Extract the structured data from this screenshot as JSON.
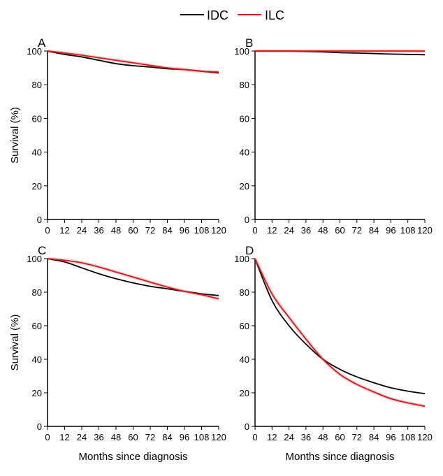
{
  "legend": {
    "items": [
      {
        "name": "IDC",
        "color": "#000000"
      },
      {
        "name": "ILC",
        "color": "#d01c1c"
      }
    ],
    "placement": "top-center"
  },
  "chart_data": [
    {
      "type": "line",
      "panel_label": "A",
      "ylabel": "Survival (%)",
      "xlabel": "",
      "xlim": [
        0,
        120
      ],
      "ylim": [
        0,
        100
      ],
      "xticks": [
        0,
        12,
        24,
        36,
        48,
        60,
        72,
        84,
        96,
        108,
        120
      ],
      "yticks": [
        0,
        20,
        40,
        60,
        80,
        100
      ],
      "x": [
        0,
        12,
        24,
        36,
        48,
        60,
        72,
        84,
        96,
        108,
        120
      ],
      "series": [
        {
          "name": "IDC",
          "values": [
            100,
            98,
            96.5,
            94.5,
            92.5,
            91.3,
            90.5,
            89.5,
            89,
            88,
            87
          ]
        },
        {
          "name": "ILC",
          "values": [
            100,
            98.8,
            97.5,
            96,
            94.5,
            93,
            91.5,
            90,
            89,
            88,
            87.5
          ]
        }
      ]
    },
    {
      "type": "line",
      "panel_label": "B",
      "ylabel": "",
      "xlabel": "",
      "xlim": [
        0,
        120
      ],
      "ylim": [
        0,
        100
      ],
      "xticks": [
        0,
        12,
        24,
        36,
        48,
        60,
        72,
        84,
        96,
        108,
        120
      ],
      "yticks": [
        0,
        20,
        40,
        60,
        80,
        100
      ],
      "x": [
        0,
        12,
        24,
        36,
        48,
        60,
        72,
        84,
        96,
        108,
        120
      ],
      "series": [
        {
          "name": "IDC",
          "values": [
            100,
            100,
            100,
            99.8,
            99.5,
            99,
            98.8,
            98.5,
            98.2,
            98,
            97.8
          ]
        },
        {
          "name": "ILC",
          "values": [
            100,
            100,
            100,
            100,
            100,
            100,
            100,
            100,
            100,
            100,
            100
          ]
        }
      ]
    },
    {
      "type": "line",
      "panel_label": "C",
      "ylabel": "Survival (%)",
      "xlabel": "Months since diagnosis",
      "xlim": [
        0,
        120
      ],
      "ylim": [
        0,
        100
      ],
      "xticks": [
        0,
        12,
        24,
        36,
        48,
        60,
        72,
        84,
        96,
        108,
        120
      ],
      "yticks": [
        0,
        20,
        40,
        60,
        80,
        100
      ],
      "x": [
        0,
        12,
        24,
        36,
        48,
        60,
        72,
        84,
        96,
        108,
        120
      ],
      "series": [
        {
          "name": "IDC",
          "values": [
            100,
            98,
            94.5,
            91,
            88,
            85.5,
            83.5,
            82,
            80.5,
            79,
            78
          ]
        },
        {
          "name": "ILC",
          "values": [
            100,
            99,
            97.5,
            95,
            92,
            89,
            86,
            83,
            80.5,
            78.5,
            76
          ]
        }
      ]
    },
    {
      "type": "line",
      "panel_label": "D",
      "ylabel": "",
      "xlabel": "Months since diagnosis",
      "xlim": [
        0,
        120
      ],
      "ylim": [
        0,
        100
      ],
      "xticks": [
        0,
        12,
        24,
        36,
        48,
        60,
        72,
        84,
        96,
        108,
        120
      ],
      "yticks": [
        0,
        20,
        40,
        60,
        80,
        100
      ],
      "x": [
        0,
        12,
        24,
        36,
        48,
        60,
        72,
        84,
        96,
        108,
        120
      ],
      "series": [
        {
          "name": "IDC",
          "values": [
            100,
            75,
            60,
            49,
            40,
            34,
            29.5,
            26,
            23,
            21,
            19.5
          ]
        },
        {
          "name": "ILC",
          "values": [
            100,
            79,
            65,
            52,
            40,
            31,
            25,
            20.5,
            16.5,
            14,
            12
          ]
        }
      ]
    }
  ]
}
